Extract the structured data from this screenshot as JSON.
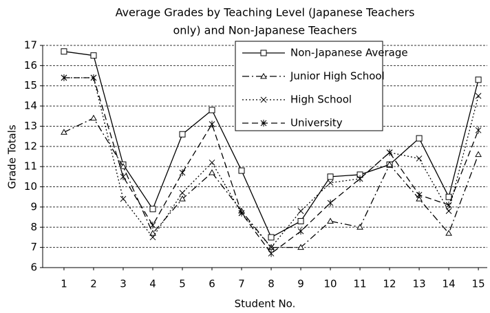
{
  "chart_data": {
    "type": "line",
    "title": [
      "Average Grades by Teaching Level (Japanese Teachers",
      "only) and Non-Japanese Teachers"
    ],
    "x_label": "Student No.",
    "y_label": "Grade Totals",
    "x": [
      1,
      2,
      3,
      4,
      5,
      6,
      7,
      8,
      9,
      10,
      11,
      12,
      13,
      14,
      15
    ],
    "xlim": [
      0.28,
      15.3
    ],
    "xticks": [
      1,
      2,
      3,
      4,
      5,
      6,
      7,
      8,
      9,
      10,
      11,
      12,
      13,
      14,
      15
    ],
    "ylim": [
      6,
      17
    ],
    "yticks": [
      6,
      7,
      8,
      9,
      10,
      11,
      12,
      13,
      14,
      15,
      16,
      17
    ],
    "grid": true,
    "legend": "top-center",
    "series": [
      {
        "name": "Non-Japanese Average",
        "color": "#000000",
        "dash": "none",
        "marker": "square",
        "values": [
          16.7,
          16.5,
          11.1,
          8.9,
          12.6,
          13.8,
          10.8,
          7.5,
          8.3,
          10.5,
          10.6,
          11.1,
          12.4,
          9.5,
          15.3
        ]
      },
      {
        "name": "Junior High School",
        "color": "#000000",
        "dash": "10,4,2,4",
        "marker": "triangle",
        "values": [
          12.7,
          13.4,
          11.0,
          7.7,
          9.4,
          10.7,
          8.8,
          7.0,
          7.0,
          8.3,
          8.0,
          11.1,
          9.4,
          7.7,
          11.6
        ]
      },
      {
        "name": "High School",
        "color": "#000000",
        "dash": "2,3",
        "marker": "x",
        "values": [
          15.4,
          15.4,
          9.4,
          7.5,
          9.7,
          11.2,
          8.7,
          7.0,
          8.8,
          10.2,
          10.4,
          11.7,
          11.4,
          8.8,
          14.5
        ]
      },
      {
        "name": "University",
        "color": "#000000",
        "dash": "9,5",
        "marker": "asterisk",
        "values": [
          15.4,
          15.4,
          10.5,
          8.1,
          10.7,
          13.1,
          8.7,
          6.7,
          7.8,
          9.2,
          10.4,
          11.7,
          9.6,
          9.1,
          12.8
        ]
      }
    ]
  }
}
